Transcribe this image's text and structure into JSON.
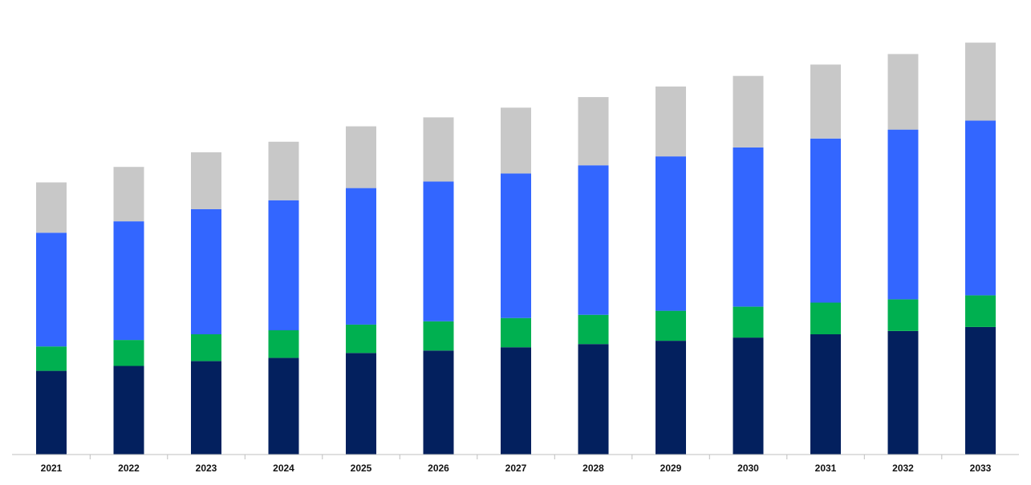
{
  "chart_data": {
    "type": "bar",
    "stacked": true,
    "title": "",
    "xlabel": "",
    "ylabel": "",
    "categories": [
      "2021",
      "2022",
      "2023",
      "2024",
      "2025",
      "2026",
      "2027",
      "2028",
      "2029",
      "2030",
      "2031",
      "2032",
      "2033"
    ],
    "series": [
      {
        "color": "#03205e",
        "values": [
          103,
          109,
          115,
          119,
          125,
          128,
          132,
          136,
          140,
          144,
          148,
          152,
          157
        ]
      },
      {
        "color": "#00b050",
        "values": [
          30,
          32,
          33,
          34,
          35,
          36,
          36,
          36,
          37,
          38,
          39,
          39,
          39
        ]
      },
      {
        "color": "#3366ff",
        "values": [
          140,
          146,
          154,
          160,
          168,
          172,
          178,
          184,
          190,
          196,
          202,
          209,
          215
        ]
      },
      {
        "color": "#c8c8c8",
        "values": [
          62,
          67,
          70,
          72,
          76,
          79,
          81,
          84,
          86,
          88,
          91,
          93,
          96
        ]
      }
    ],
    "ylim": [
      0,
      520
    ],
    "grid": false,
    "legend": "none"
  }
}
